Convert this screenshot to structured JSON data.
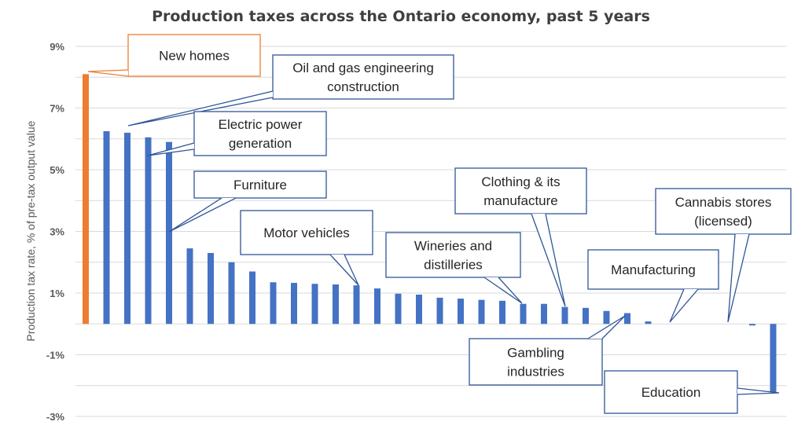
{
  "chart_data": {
    "type": "bar",
    "title": "Production taxes across the Ontario economy, past 5 years",
    "ylabel": "Production tax rate, % of pre-tax output value",
    "ylim": [
      -3,
      9
    ],
    "yticks": [
      {
        "value": 9,
        "label": "9%"
      },
      {
        "value": 7,
        "label": "7%"
      },
      {
        "value": 5,
        "label": "5%"
      },
      {
        "value": 3,
        "label": "3%"
      },
      {
        "value": 1,
        "label": "1%"
      },
      {
        "value": -1,
        "label": "-1%"
      },
      {
        "value": -3,
        "label": "-3%"
      }
    ],
    "grid": true,
    "colors": {
      "highlight": "#ed7d31",
      "bar": "#4472c4",
      "grid": "#d9d9d9"
    },
    "values": [
      8.1,
      6.25,
      6.2,
      6.05,
      5.9,
      2.45,
      2.3,
      2.0,
      1.7,
      1.35,
      1.33,
      1.3,
      1.28,
      1.25,
      1.15,
      0.98,
      0.95,
      0.85,
      0.82,
      0.78,
      0.75,
      0.65,
      0.65,
      0.55,
      0.52,
      0.42,
      0.35,
      0.08,
      0.0,
      0.0,
      0.0,
      0.0,
      -0.02,
      -2.25
    ],
    "highlight_index": 0,
    "annotations": [
      {
        "lines": [
          "New homes"
        ],
        "target_index": 0,
        "target_value": 8.1
      },
      {
        "lines": [
          "Oil and gas engineering",
          "construction"
        ],
        "target_index": 2,
        "target_value": 6.2
      },
      {
        "lines": [
          "Electric power",
          "generation"
        ],
        "target_index": 3,
        "target_value": 5.4
      },
      {
        "lines": [
          "Furniture"
        ],
        "target_index": 4,
        "target_value": 2.9
      },
      {
        "lines": [
          "Motor vehicles"
        ],
        "target_index": 13,
        "target_value": 1.25
      },
      {
        "lines": [
          "Wineries and",
          "distilleries"
        ],
        "target_index": 21,
        "target_value": 0.65
      },
      {
        "lines": [
          "Clothing & its",
          "manufacture"
        ],
        "target_index": 23,
        "target_value": 0.55
      },
      {
        "lines": [
          "Cannabis stores",
          "(licensed)"
        ],
        "target_index": 31,
        "target_value": 0.05
      },
      {
        "lines": [
          "Manufacturing"
        ],
        "target_index": 28,
        "target_value": 0.0
      },
      {
        "lines": [
          "Gambling",
          "industries"
        ],
        "target_index": 26,
        "target_value": 0.35
      },
      {
        "lines": [
          "Education"
        ],
        "target_index": 33,
        "target_value": -2.25
      }
    ]
  }
}
